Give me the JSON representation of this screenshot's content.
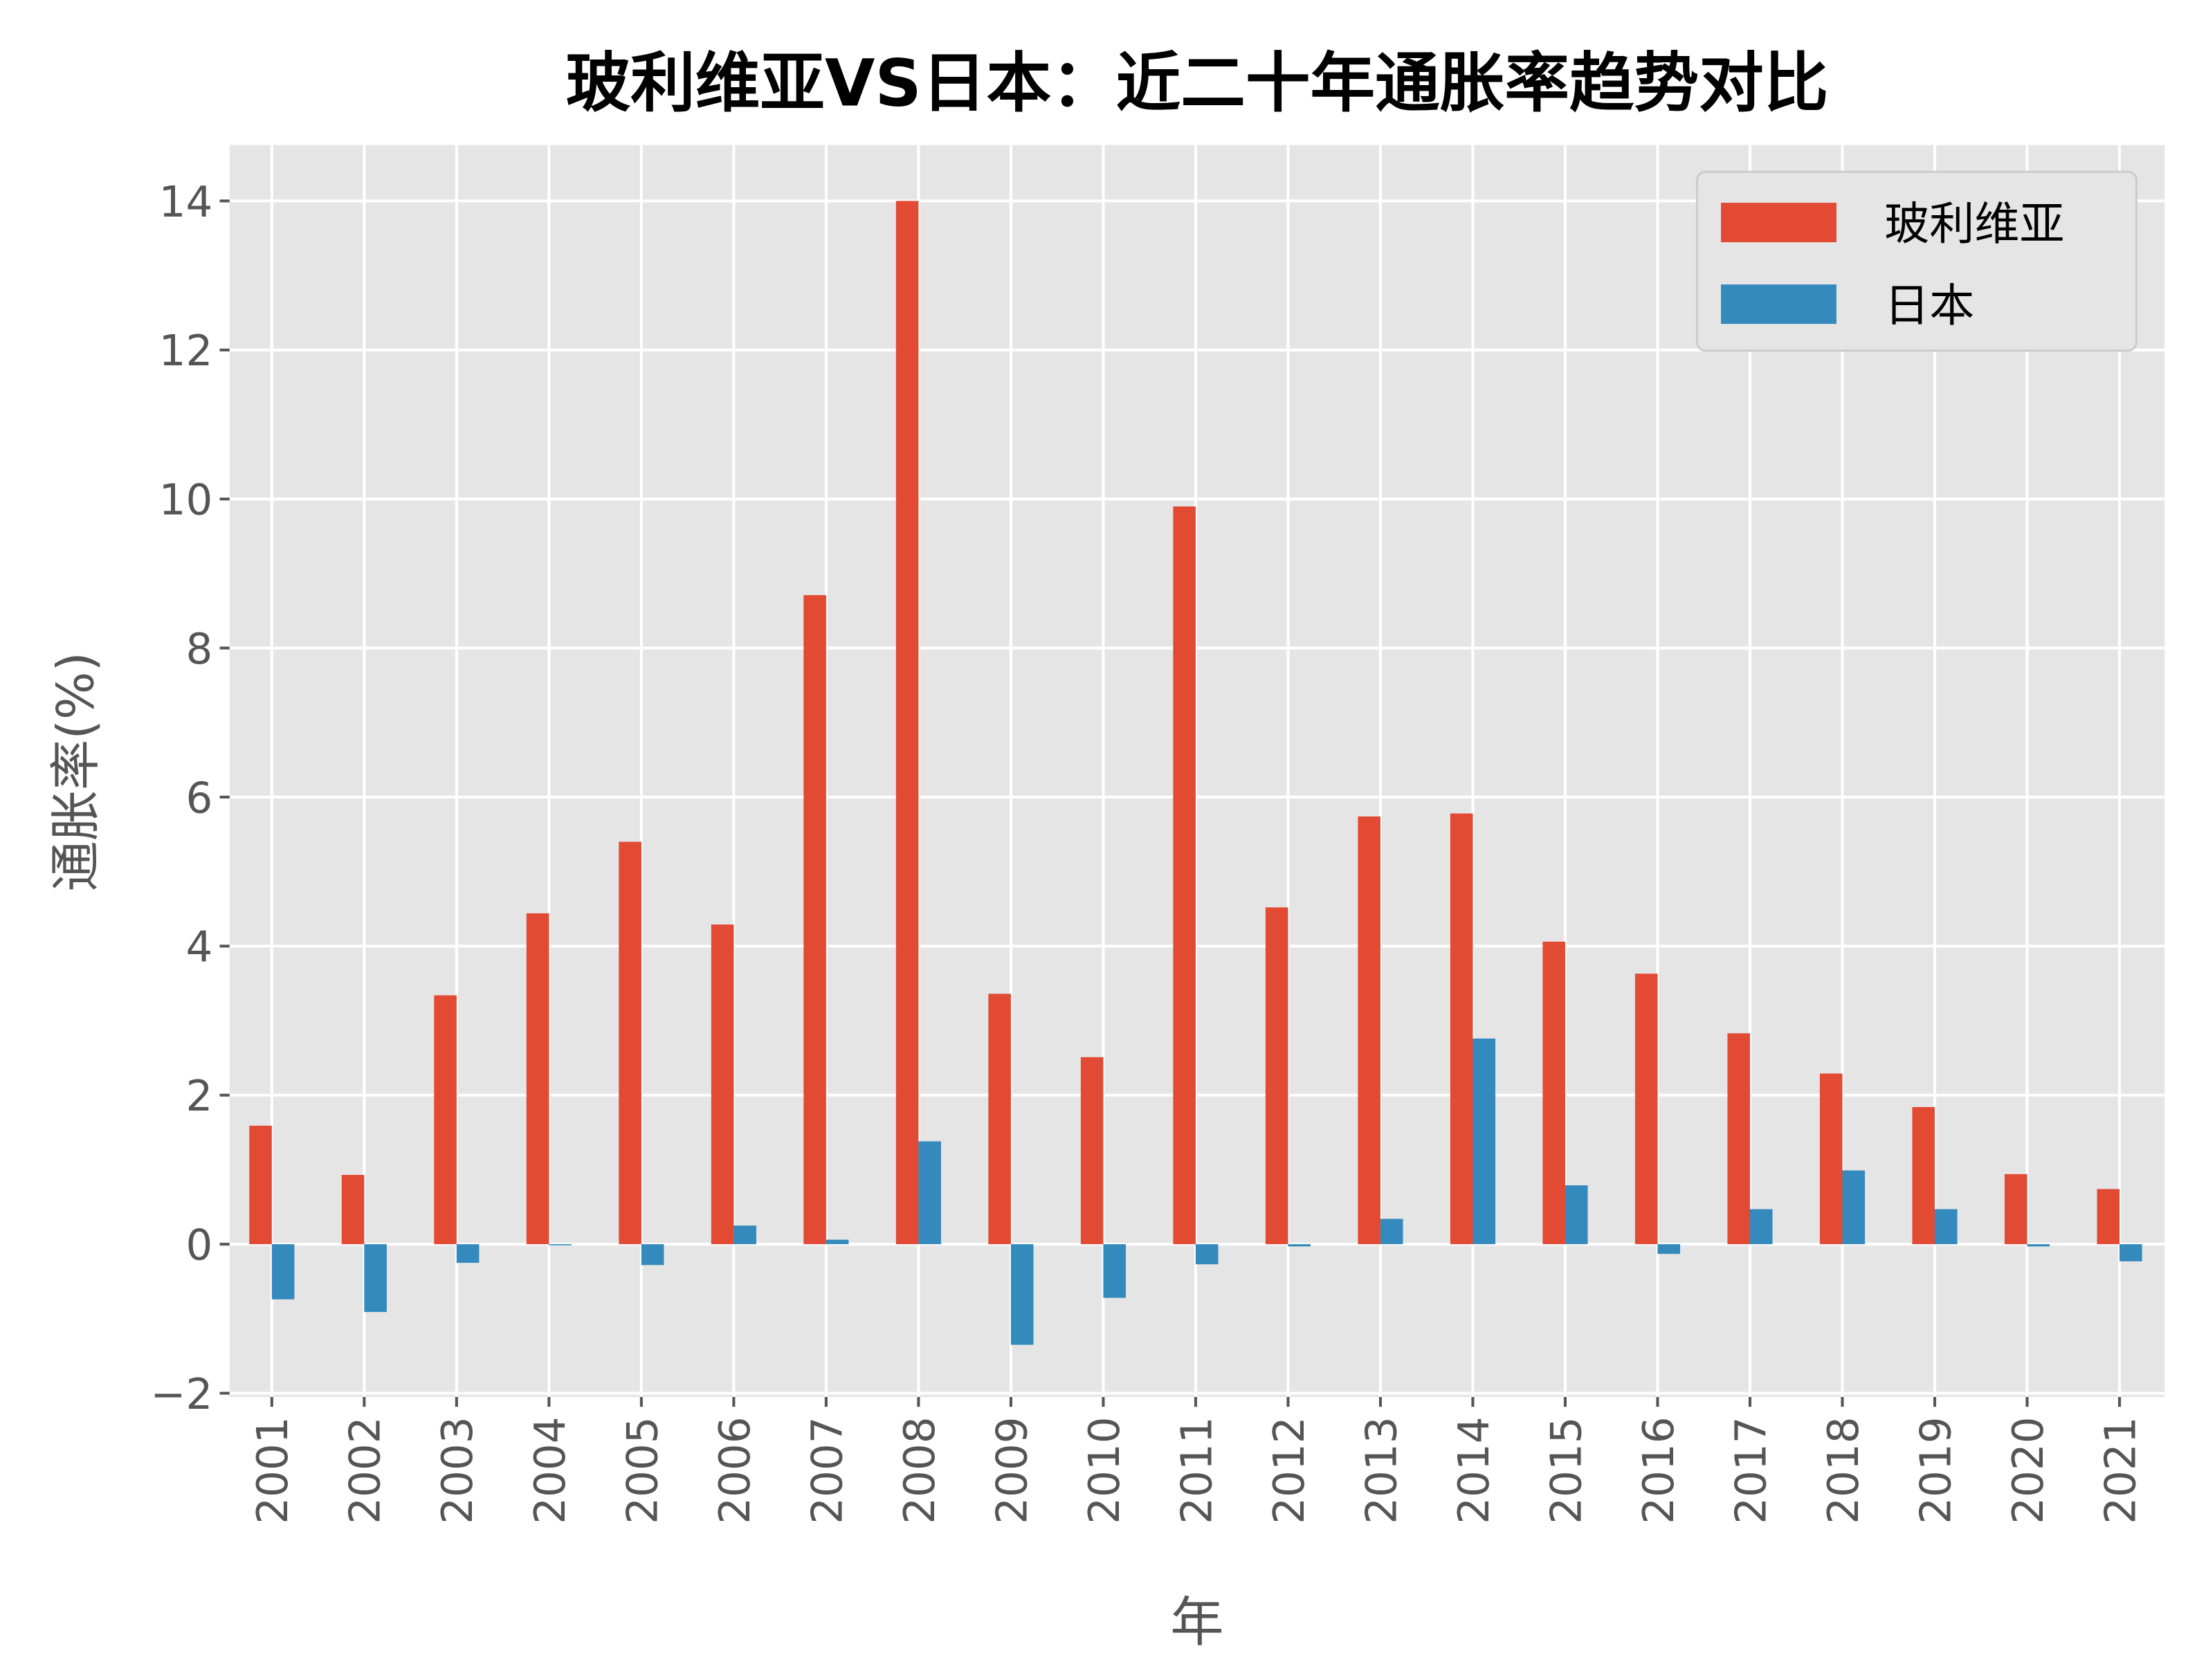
{
  "chart_data": {
    "type": "bar",
    "title": "玻利维亚VS日本：近二十年通胀率趋势对比",
    "xlabel": "年",
    "ylabel": "通胀率(%)",
    "categories": [
      "2001",
      "2002",
      "2003",
      "2004",
      "2005",
      "2006",
      "2007",
      "2008",
      "2009",
      "2010",
      "2011",
      "2012",
      "2013",
      "2014",
      "2015",
      "2016",
      "2017",
      "2018",
      "2019",
      "2020",
      "2021"
    ],
    "series": [
      {
        "name": "玻利维亚",
        "color": "#E24A33",
        "values": [
          1.59,
          0.93,
          3.34,
          4.44,
          5.4,
          4.29,
          8.71,
          14.0,
          3.36,
          2.51,
          9.9,
          4.52,
          5.74,
          5.78,
          4.06,
          3.63,
          2.83,
          2.29,
          1.84,
          0.94,
          0.74
        ]
      },
      {
        "name": "日本",
        "color": "#348ABD",
        "values": [
          -0.74,
          -0.91,
          -0.25,
          -0.01,
          -0.28,
          0.25,
          0.06,
          1.38,
          -1.35,
          -0.72,
          -0.27,
          -0.03,
          0.34,
          2.76,
          0.79,
          -0.13,
          0.47,
          0.99,
          0.47,
          -0.03,
          -0.23
        ]
      }
    ],
    "ylim": [
      -2.05,
      14.75
    ],
    "yticks": [
      "−2",
      "0",
      "2",
      "4",
      "6",
      "8",
      "10",
      "12",
      "14"
    ],
    "ytick_values": [
      -2,
      0,
      2,
      4,
      6,
      8,
      10,
      12,
      14
    ],
    "grid": true,
    "legend": "top-right",
    "background": "#E5E5E5"
  }
}
